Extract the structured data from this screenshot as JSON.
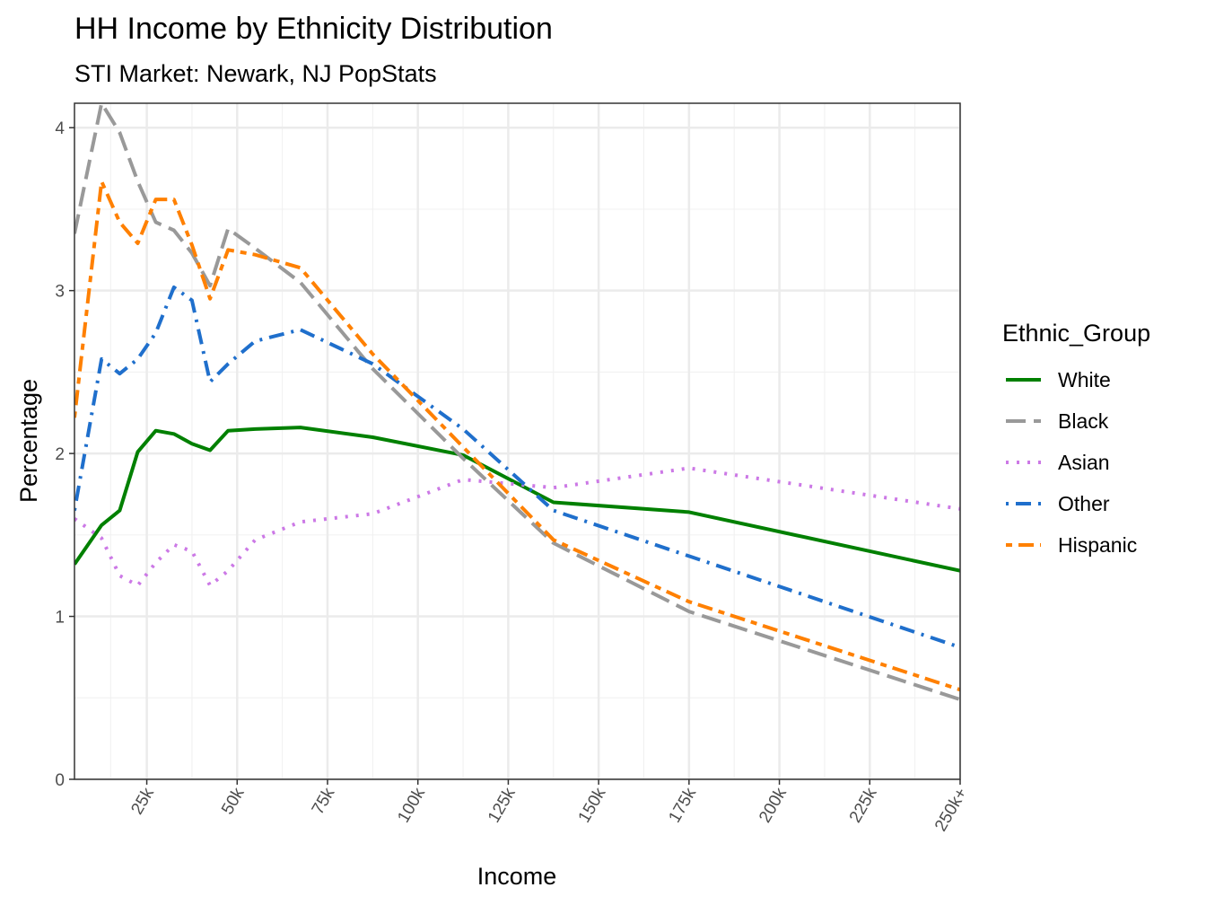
{
  "chart_data": {
    "type": "line",
    "title": "HH Income by Ethnicity Distribution",
    "subtitle": "STI Market: Newark, NJ PopStats",
    "xlabel": "Income",
    "ylabel": "Percentage",
    "xlim": [
      5,
      250
    ],
    "ylim": [
      0,
      4.15
    ],
    "x_ticks": [
      25,
      50,
      75,
      100,
      125,
      150,
      175,
      200,
      225,
      250
    ],
    "x_tick_labels": [
      "25k",
      "50k",
      "75k",
      "100k",
      "125k",
      "150k",
      "175k",
      "200k",
      "225k",
      "250k+"
    ],
    "y_ticks": [
      0,
      1,
      2,
      3,
      4
    ],
    "y_tick_labels": [
      "0",
      "1",
      "2",
      "3",
      "4"
    ],
    "grid": true,
    "legend": {
      "title": "Ethnic_Group",
      "position": "right"
    },
    "x": [
      5,
      12.5,
      17.5,
      22.5,
      27.5,
      32.5,
      37.5,
      42.5,
      47.5,
      55,
      67.5,
      87.5,
      112.5,
      137.5,
      175,
      250
    ],
    "series": [
      {
        "name": "White",
        "color": "#008000",
        "dash": "solid",
        "values": [
          1.32,
          1.56,
          1.65,
          2.01,
          2.14,
          2.12,
          2.06,
          2.02,
          2.14,
          2.15,
          2.16,
          2.1,
          1.99,
          1.7,
          1.64,
          1.28
        ]
      },
      {
        "name": "Black",
        "color": "#999999",
        "dash": "longdash",
        "values": [
          3.35,
          4.15,
          3.97,
          3.67,
          3.42,
          3.37,
          3.23,
          3.03,
          3.38,
          3.26,
          3.05,
          2.52,
          1.97,
          1.45,
          1.03,
          0.49
        ]
      },
      {
        "name": "Asian",
        "color": "#cc79e6",
        "dash": "dotted",
        "values": [
          1.6,
          1.48,
          1.25,
          1.19,
          1.33,
          1.44,
          1.4,
          1.19,
          1.28,
          1.47,
          1.58,
          1.63,
          1.84,
          1.79,
          1.91,
          1.66
        ]
      },
      {
        "name": "Other",
        "color": "#1f6fcc",
        "dash": "dotdash",
        "values": [
          1.65,
          2.58,
          2.49,
          2.58,
          2.74,
          3.02,
          2.94,
          2.44,
          2.55,
          2.69,
          2.76,
          2.55,
          2.15,
          1.65,
          1.37,
          0.81
        ]
      },
      {
        "name": "Hispanic",
        "color": "#ff8000",
        "dash": "twodash",
        "values": [
          2.22,
          3.67,
          3.42,
          3.29,
          3.56,
          3.56,
          3.28,
          2.95,
          3.25,
          3.22,
          3.14,
          2.61,
          2.04,
          1.47,
          1.09,
          0.55
        ]
      }
    ]
  }
}
